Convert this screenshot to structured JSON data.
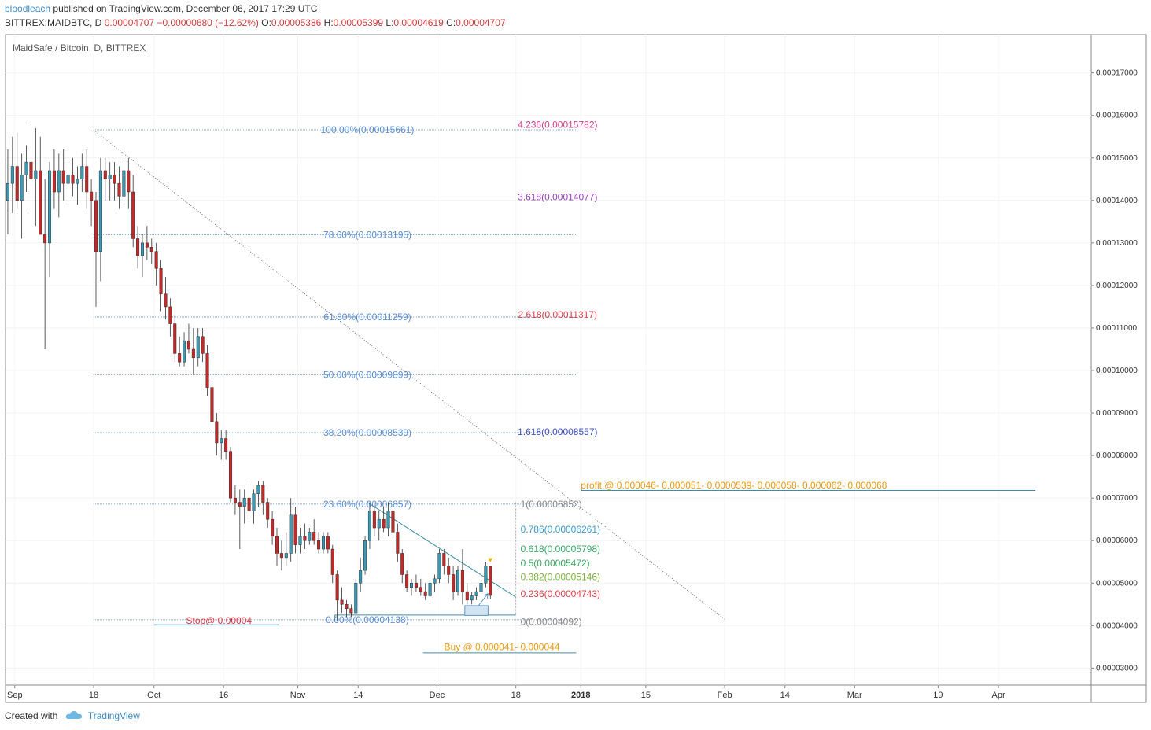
{
  "header": {
    "author": "bloodleach",
    "published": "published on TradingView.com, December 06, 2017 17:29 UTC",
    "symbol": "BITTREX:MAIDBTC, D",
    "last": "0.00004707",
    "change": "−0.00000680 (−12.62%)",
    "o_label": "O:",
    "o": "0.00005386",
    "h_label": "H:",
    "h": "0.00005399",
    "l_label": "L:",
    "l": "0.00004619",
    "c_label": "C:",
    "c": "0.00004707"
  },
  "footer": {
    "created_with": "Created with",
    "brand": "TradingView"
  },
  "colors": {
    "up": "#53b987",
    "down": "#eb4d5c",
    "candle_up": "#3a9ab5",
    "candle_down": "#c62828",
    "fib_line": "#5b8fd6",
    "fib_text": "#5b8fd6",
    "trend": "#3b8fa8",
    "profit": "#f09a0f",
    "stop": "#e0303d",
    "axis_text": "#333333"
  },
  "chart_data": {
    "type": "candlestick",
    "title": "MaidSafe / Bitcoin, D, BITTREX",
    "y_axis": {
      "min": 2.6e-05,
      "max": 0.000179,
      "ticks": [
        "0.00017000",
        "0.00016000",
        "0.00015000",
        "0.00014000",
        "0.00013000",
        "0.00012000",
        "0.00011000",
        "0.00010000",
        "0.00009000",
        "0.00008000",
        "0.00007000",
        "0.00006000",
        "0.00005000",
        "0.00004000",
        "0.00003000"
      ],
      "tick_values": [
        0.00017,
        0.00016,
        0.00015,
        0.00014,
        0.00013,
        0.00012,
        0.00011,
        0.0001,
        9e-05,
        8e-05,
        7e-05,
        6e-05,
        5e-05,
        4e-05,
        3e-05
      ]
    },
    "x_axis": {
      "start": "2017-08-30",
      "end": "2018-04-21",
      "ticks": [
        {
          "date": "2017-09-01",
          "label": "Sep",
          "bold": false
        },
        {
          "date": "2017-09-18",
          "label": "18",
          "bold": false
        },
        {
          "date": "2017-10-01",
          "label": "Oct",
          "bold": false
        },
        {
          "date": "2017-10-16",
          "label": "16",
          "bold": false
        },
        {
          "date": "2017-11-01",
          "label": "Nov",
          "bold": false
        },
        {
          "date": "2017-11-14",
          "label": "14",
          "bold": false
        },
        {
          "date": "2017-12-01",
          "label": "Dec",
          "bold": false
        },
        {
          "date": "2017-12-18",
          "label": "18",
          "bold": false
        },
        {
          "date": "2018-01-01",
          "label": "2018",
          "bold": true
        },
        {
          "date": "2018-01-15",
          "label": "15",
          "bold": false
        },
        {
          "date": "2018-02-01",
          "label": "Feb",
          "bold": false
        },
        {
          "date": "2018-02-14",
          "label": "14",
          "bold": false
        },
        {
          "date": "2018-03-01",
          "label": "Mar",
          "bold": false
        },
        {
          "date": "2018-03-19",
          "label": "19",
          "bold": false
        },
        {
          "date": "2018-04-01",
          "label": "Apr",
          "bold": false
        }
      ]
    },
    "candles": [
      {
        "d": "2017-08-30",
        "o": 0.00014,
        "h": 0.000152,
        "l": 0.000132,
        "c": 0.000144
      },
      {
        "d": "2017-08-31",
        "o": 0.000144,
        "h": 0.000155,
        "l": 0.000137,
        "c": 0.000148
      },
      {
        "d": "2017-09-01",
        "o": 0.000148,
        "h": 0.000156,
        "l": 0.000138,
        "c": 0.00014
      },
      {
        "d": "2017-09-02",
        "o": 0.00014,
        "h": 0.000151,
        "l": 0.000131,
        "c": 0.000146
      },
      {
        "d": "2017-09-03",
        "o": 0.000146,
        "h": 0.000153,
        "l": 0.000142,
        "c": 0.000149
      },
      {
        "d": "2017-09-04",
        "o": 0.000149,
        "h": 0.000158,
        "l": 0.000138,
        "c": 0.000145
      },
      {
        "d": "2017-09-05",
        "o": 0.000145,
        "h": 0.000157,
        "l": 0.000134,
        "c": 0.000147
      },
      {
        "d": "2017-09-06",
        "o": 0.000147,
        "h": 0.000155,
        "l": 0.000133,
        "c": 0.000132
      },
      {
        "d": "2017-09-07",
        "o": 0.000132,
        "h": 0.000145,
        "l": 0.000105,
        "c": 0.00013
      },
      {
        "d": "2017-09-08",
        "o": 0.00013,
        "h": 0.000149,
        "l": 0.000122,
        "c": 0.000147
      },
      {
        "d": "2017-09-09",
        "o": 0.000147,
        "h": 0.000152,
        "l": 0.000138,
        "c": 0.000142
      },
      {
        "d": "2017-09-10",
        "o": 0.000142,
        "h": 0.000151,
        "l": 0.000136,
        "c": 0.000147
      },
      {
        "d": "2017-09-11",
        "o": 0.000147,
        "h": 0.000152,
        "l": 0.00014,
        "c": 0.000144
      },
      {
        "d": "2017-09-12",
        "o": 0.000144,
        "h": 0.000149,
        "l": 0.000139,
        "c": 0.000146
      },
      {
        "d": "2017-09-13",
        "o": 0.000146,
        "h": 0.00015,
        "l": 0.000141,
        "c": 0.000144
      },
      {
        "d": "2017-09-14",
        "o": 0.000144,
        "h": 0.000148,
        "l": 0.000139,
        "c": 0.000145
      },
      {
        "d": "2017-09-15",
        "o": 0.000145,
        "h": 0.000151,
        "l": 0.000142,
        "c": 0.000148
      },
      {
        "d": "2017-09-16",
        "o": 0.000148,
        "h": 0.000152,
        "l": 0.000138,
        "c": 0.000142
      },
      {
        "d": "2017-09-17",
        "o": 0.000142,
        "h": 0.000145,
        "l": 0.000134,
        "c": 0.00014
      },
      {
        "d": "2017-09-18",
        "o": 0.00014,
        "h": 0.000142,
        "l": 0.000115,
        "c": 0.000128
      },
      {
        "d": "2017-09-19",
        "o": 0.000128,
        "h": 0.00015,
        "l": 0.000121,
        "c": 0.000147
      },
      {
        "d": "2017-09-20",
        "o": 0.000147,
        "h": 0.00015,
        "l": 0.00014,
        "c": 0.000145
      },
      {
        "d": "2017-09-21",
        "o": 0.000145,
        "h": 0.000149,
        "l": 0.00014,
        "c": 0.000146
      },
      {
        "d": "2017-09-22",
        "o": 0.000146,
        "h": 0.000149,
        "l": 0.00014,
        "c": 0.000144
      },
      {
        "d": "2017-09-23",
        "o": 0.000144,
        "h": 0.000148,
        "l": 0.000138,
        "c": 0.000141
      },
      {
        "d": "2017-09-24",
        "o": 0.000141,
        "h": 0.00015,
        "l": 0.000139,
        "c": 0.000147
      },
      {
        "d": "2017-09-25",
        "o": 0.000147,
        "h": 0.00015,
        "l": 0.000138,
        "c": 0.000142
      },
      {
        "d": "2017-09-26",
        "o": 0.000142,
        "h": 0.000146,
        "l": 0.000129,
        "c": 0.000131
      },
      {
        "d": "2017-09-27",
        "o": 0.000131,
        "h": 0.000134,
        "l": 0.000124,
        "c": 0.000127
      },
      {
        "d": "2017-09-28",
        "o": 0.000127,
        "h": 0.000132,
        "l": 0.000122,
        "c": 0.00013
      },
      {
        "d": "2017-09-29",
        "o": 0.00013,
        "h": 0.000134,
        "l": 0.000126,
        "c": 0.000129
      },
      {
        "d": "2017-09-30",
        "o": 0.000129,
        "h": 0.000131,
        "l": 0.000125,
        "c": 0.000128
      },
      {
        "d": "2017-10-01",
        "o": 0.000128,
        "h": 0.00013,
        "l": 0.00012,
        "c": 0.000124
      },
      {
        "d": "2017-10-02",
        "o": 0.000124,
        "h": 0.000126,
        "l": 0.000114,
        "c": 0.000118
      },
      {
        "d": "2017-10-03",
        "o": 0.000118,
        "h": 0.000122,
        "l": 0.000112,
        "c": 0.000115
      },
      {
        "d": "2017-10-04",
        "o": 0.000115,
        "h": 0.000117,
        "l": 0.000108,
        "c": 0.000111
      },
      {
        "d": "2017-10-05",
        "o": 0.000111,
        "h": 0.000113,
        "l": 0.000102,
        "c": 0.000104
      },
      {
        "d": "2017-10-06",
        "o": 0.000104,
        "h": 0.000108,
        "l": 0.000101,
        "c": 0.000102
      },
      {
        "d": "2017-10-07",
        "o": 0.000102,
        "h": 0.000109,
        "l": 0.000101,
        "c": 0.000107
      },
      {
        "d": "2017-10-08",
        "o": 0.000107,
        "h": 0.000111,
        "l": 0.000104,
        "c": 0.000105
      },
      {
        "d": "2017-10-09",
        "o": 0.000105,
        "h": 0.00011,
        "l": 9.9e-05,
        "c": 0.000103
      },
      {
        "d": "2017-10-10",
        "o": 0.000103,
        "h": 0.00011,
        "l": 0.000101,
        "c": 0.000108
      },
      {
        "d": "2017-10-11",
        "o": 0.000108,
        "h": 0.00011,
        "l": 0.000102,
        "c": 0.000104
      },
      {
        "d": "2017-10-12",
        "o": 0.000104,
        "h": 0.000106,
        "l": 9.4e-05,
        "c": 9.6e-05
      },
      {
        "d": "2017-10-13",
        "o": 9.6e-05,
        "h": 9.7e-05,
        "l": 8.6e-05,
        "c": 8.8e-05
      },
      {
        "d": "2017-10-14",
        "o": 8.8e-05,
        "h": 9e-05,
        "l": 8e-05,
        "c": 8.3e-05
      },
      {
        "d": "2017-10-15",
        "o": 8.3e-05,
        "h": 8.6e-05,
        "l": 7.9e-05,
        "c": 8.4e-05
      },
      {
        "d": "2017-10-16",
        "o": 8.4e-05,
        "h": 8.6e-05,
        "l": 7.9e-05,
        "c": 8.1e-05
      },
      {
        "d": "2017-10-17",
        "o": 8.1e-05,
        "h": 8.2e-05,
        "l": 6.9e-05,
        "c": 7e-05
      },
      {
        "d": "2017-10-18",
        "o": 7e-05,
        "h": 7.3e-05,
        "l": 6.6e-05,
        "c": 6.9e-05
      },
      {
        "d": "2017-10-19",
        "o": 6.9e-05,
        "h": 7.2e-05,
        "l": 5.8e-05,
        "c": 6.8e-05
      },
      {
        "d": "2017-10-20",
        "o": 6.8e-05,
        "h": 7.2e-05,
        "l": 6.4e-05,
        "c": 7e-05
      },
      {
        "d": "2017-10-21",
        "o": 7e-05,
        "h": 7.4e-05,
        "l": 6.5e-05,
        "c": 6.7e-05
      },
      {
        "d": "2017-10-22",
        "o": 6.7e-05,
        "h": 7.2e-05,
        "l": 6.4e-05,
        "c": 7.1e-05
      },
      {
        "d": "2017-10-23",
        "o": 7.1e-05,
        "h": 7.4e-05,
        "l": 6.8e-05,
        "c": 7.3e-05
      },
      {
        "d": "2017-10-24",
        "o": 7.3e-05,
        "h": 7.4e-05,
        "l": 6.6e-05,
        "c": 6.9e-05
      },
      {
        "d": "2017-10-25",
        "o": 6.9e-05,
        "h": 7e-05,
        "l": 6.3e-05,
        "c": 6.5e-05
      },
      {
        "d": "2017-10-26",
        "o": 6.5e-05,
        "h": 6.7e-05,
        "l": 5.9e-05,
        "c": 6.1e-05
      },
      {
        "d": "2017-10-27",
        "o": 6.1e-05,
        "h": 6.3e-05,
        "l": 5.4e-05,
        "c": 5.7e-05
      },
      {
        "d": "2017-10-28",
        "o": 5.7e-05,
        "h": 6e-05,
        "l": 5.3e-05,
        "c": 5.6e-05
      },
      {
        "d": "2017-10-29",
        "o": 5.6e-05,
        "h": 6.2e-05,
        "l": 5.4e-05,
        "c": 5.7e-05
      },
      {
        "d": "2017-10-30",
        "o": 5.7e-05,
        "h": 7e-05,
        "l": 5.5e-05,
        "c": 6.6e-05
      },
      {
        "d": "2017-10-31",
        "o": 6.6e-05,
        "h": 6.8e-05,
        "l": 5.7e-05,
        "c": 5.9e-05
      },
      {
        "d": "2017-11-01",
        "o": 5.9e-05,
        "h": 6.3e-05,
        "l": 5.7e-05,
        "c": 6.1e-05
      },
      {
        "d": "2017-11-02",
        "o": 6.1e-05,
        "h": 6.4e-05,
        "l": 5.8e-05,
        "c": 6e-05
      },
      {
        "d": "2017-11-03",
        "o": 6e-05,
        "h": 6.3e-05,
        "l": 5.9e-05,
        "c": 6.2e-05
      },
      {
        "d": "2017-11-04",
        "o": 6.2e-05,
        "h": 6.5e-05,
        "l": 5.9e-05,
        "c": 6e-05
      },
      {
        "d": "2017-11-05",
        "o": 6e-05,
        "h": 6.2e-05,
        "l": 5.7e-05,
        "c": 5.8e-05
      },
      {
        "d": "2017-11-06",
        "o": 5.8e-05,
        "h": 6.2e-05,
        "l": 5.7e-05,
        "c": 6.1e-05
      },
      {
        "d": "2017-11-07",
        "o": 6.1e-05,
        "h": 6.2e-05,
        "l": 5.7e-05,
        "c": 5.8e-05
      },
      {
        "d": "2017-11-08",
        "o": 5.8e-05,
        "h": 5.9e-05,
        "l": 5e-05,
        "c": 5.2e-05
      },
      {
        "d": "2017-11-09",
        "o": 5.2e-05,
        "h": 5.3e-05,
        "l": 4.1e-05,
        "c": 4.6e-05
      },
      {
        "d": "2017-11-10",
        "o": 4.6e-05,
        "h": 4.9e-05,
        "l": 4.3e-05,
        "c": 4.5e-05
      },
      {
        "d": "2017-11-11",
        "o": 4.5e-05,
        "h": 4.6e-05,
        "l": 4.2e-05,
        "c": 4.4e-05
      },
      {
        "d": "2017-11-12",
        "o": 4.4e-05,
        "h": 4.5e-05,
        "l": 4.2e-05,
        "c": 4.3e-05
      },
      {
        "d": "2017-11-13",
        "o": 4.3e-05,
        "h": 5.1e-05,
        "l": 4.3e-05,
        "c": 5e-05
      },
      {
        "d": "2017-11-14",
        "o": 5e-05,
        "h": 5.6e-05,
        "l": 4.8e-05,
        "c": 5.3e-05
      },
      {
        "d": "2017-11-15",
        "o": 5.3e-05,
        "h": 6.1e-05,
        "l": 5.2e-05,
        "c": 6e-05
      },
      {
        "d": "2017-11-16",
        "o": 6e-05,
        "h": 6.9e-05,
        "l": 5.8e-05,
        "c": 6.7e-05
      },
      {
        "d": "2017-11-17",
        "o": 6.7e-05,
        "h": 6.9e-05,
        "l": 6.1e-05,
        "c": 6.3e-05
      },
      {
        "d": "2017-11-18",
        "o": 6.3e-05,
        "h": 6.7e-05,
        "l": 6e-05,
        "c": 6.5e-05
      },
      {
        "d": "2017-11-19",
        "o": 6.5e-05,
        "h": 6.8e-05,
        "l": 6.2e-05,
        "c": 6.3e-05
      },
      {
        "d": "2017-11-20",
        "o": 6.3e-05,
        "h": 6.9e-05,
        "l": 6.1e-05,
        "c": 6.7e-05
      },
      {
        "d": "2017-11-21",
        "o": 6.7e-05,
        "h": 6.8e-05,
        "l": 6e-05,
        "c": 6.2e-05
      },
      {
        "d": "2017-11-22",
        "o": 6.2e-05,
        "h": 6.4e-05,
        "l": 5.5e-05,
        "c": 5.7e-05
      },
      {
        "d": "2017-11-23",
        "o": 5.7e-05,
        "h": 5.8e-05,
        "l": 5e-05,
        "c": 5.2e-05
      },
      {
        "d": "2017-11-24",
        "o": 5.2e-05,
        "h": 5.3e-05,
        "l": 4.8e-05,
        "c": 4.9e-05
      },
      {
        "d": "2017-11-25",
        "o": 4.9e-05,
        "h": 5.1e-05,
        "l": 4.7e-05,
        "c": 5e-05
      },
      {
        "d": "2017-11-26",
        "o": 5e-05,
        "h": 5.2e-05,
        "l": 4.8e-05,
        "c": 4.9e-05
      },
      {
        "d": "2017-11-27",
        "o": 4.9e-05,
        "h": 5.1e-05,
        "l": 4.7e-05,
        "c": 4.8e-05
      },
      {
        "d": "2017-11-28",
        "o": 4.8e-05,
        "h": 5e-05,
        "l": 4.6e-05,
        "c": 4.7e-05
      },
      {
        "d": "2017-11-29",
        "o": 4.7e-05,
        "h": 5.1e-05,
        "l": 4.6e-05,
        "c": 5e-05
      },
      {
        "d": "2017-11-30",
        "o": 5e-05,
        "h": 5.2e-05,
        "l": 4.8e-05,
        "c": 5.1e-05
      },
      {
        "d": "2017-12-01",
        "o": 5.1e-05,
        "h": 5.8e-05,
        "l": 5e-05,
        "c": 5.7e-05
      },
      {
        "d": "2017-12-02",
        "o": 5.7e-05,
        "h": 5.8e-05,
        "l": 5.2e-05,
        "c": 5.4e-05
      },
      {
        "d": "2017-12-03",
        "o": 5.4e-05,
        "h": 5.6e-05,
        "l": 5e-05,
        "c": 5.2e-05
      },
      {
        "d": "2017-12-04",
        "o": 5.2e-05,
        "h": 5.4e-05,
        "l": 4.6e-05,
        "c": 4.8e-05
      },
      {
        "d": "2017-12-05",
        "o": 4.8e-05,
        "h": 5.4e-05,
        "l": 4.7e-05,
        "c": 5.3e-05
      },
      {
        "d": "2017-12-06",
        "o": 5.3e-05,
        "h": 5.8e-05,
        "l": 4.5e-05,
        "c": 4.8e-05
      },
      {
        "d": "2017-12-07",
        "o": 4.8e-05,
        "h": 5e-05,
        "l": 4.5e-05,
        "c": 4.6e-05
      },
      {
        "d": "2017-12-08",
        "o": 4.6e-05,
        "h": 4.8e-05,
        "l": 4.5e-05,
        "c": 4.7e-05
      },
      {
        "d": "2017-12-09",
        "o": 4.7e-05,
        "h": 4.9e-05,
        "l": 4.6e-05,
        "c": 4.8e-05
      },
      {
        "d": "2017-12-10",
        "o": 4.8e-05,
        "h": 5.2e-05,
        "l": 4.7e-05,
        "c": 5e-05
      },
      {
        "d": "2017-12-11",
        "o": 5e-05,
        "h": 5.5e-05,
        "l": 4.9e-05,
        "c": 5.4e-05
      },
      {
        "d": "2017-12-12",
        "o": 5.39e-05,
        "h": 5.4e-05,
        "l": 4.62e-05,
        "c": 4.71e-05
      }
    ],
    "fib_retracement": [
      {
        "label": "100.00%(0.00015661)",
        "value": 0.00015661
      },
      {
        "label": "78.60%(0.00013195)",
        "value": 0.00013195
      },
      {
        "label": "61.80%(0.00011259)",
        "value": 0.00011259
      },
      {
        "label": "50.00%(0.00009899)",
        "value": 9.899e-05
      },
      {
        "label": "38.20%(0.00008539)",
        "value": 8.539e-05
      },
      {
        "label": "23.60%(0.00006857)",
        "value": 6.857e-05
      },
      {
        "label": "0.00%(0.00004138)",
        "value": 4.138e-05
      }
    ],
    "fib_extension": [
      {
        "label": "4.236(0.00015782)",
        "value": 0.00015782,
        "color": "#d4418e"
      },
      {
        "label": "3.618(0.00014077)",
        "value": 0.00014077,
        "color": "#9c3fc2"
      },
      {
        "label": "2.618(0.00011317)",
        "value": 0.00011317,
        "color": "#e0404a"
      },
      {
        "label": "1.618(0.00008557)",
        "value": 8.557e-05,
        "color": "#3e4fc2"
      }
    ],
    "small_fib": [
      {
        "label": "1(0.00006852)",
        "value": 6.852e-05,
        "color": "#888888"
      },
      {
        "label": "0.786(0.00006261)",
        "value": 6.261e-05,
        "color": "#3c9ad0"
      },
      {
        "label": "0.618(0.00005798)",
        "value": 5.798e-05,
        "color": "#3aa86a"
      },
      {
        "label": "0.5(0.00005472)",
        "value": 5.472e-05,
        "color": "#3aa860"
      },
      {
        "label": "0.382(0.00005146)",
        "value": 5.146e-05,
        "color": "#7ab33a"
      },
      {
        "label": "0.236(0.00004743)",
        "value": 4.743e-05,
        "color": "#e0404a"
      },
      {
        "label": "0(0.00004092)",
        "value": 4.092e-05,
        "color": "#888888"
      }
    ],
    "annotations": {
      "profit": "profit @ 0.000046- 0.000051- 0.0000539- 0.000058- 0.000062- 0.000068",
      "buy": "Buy @ 0.000041- 0.000044",
      "stop": "Stop@ 0.00004"
    }
  }
}
